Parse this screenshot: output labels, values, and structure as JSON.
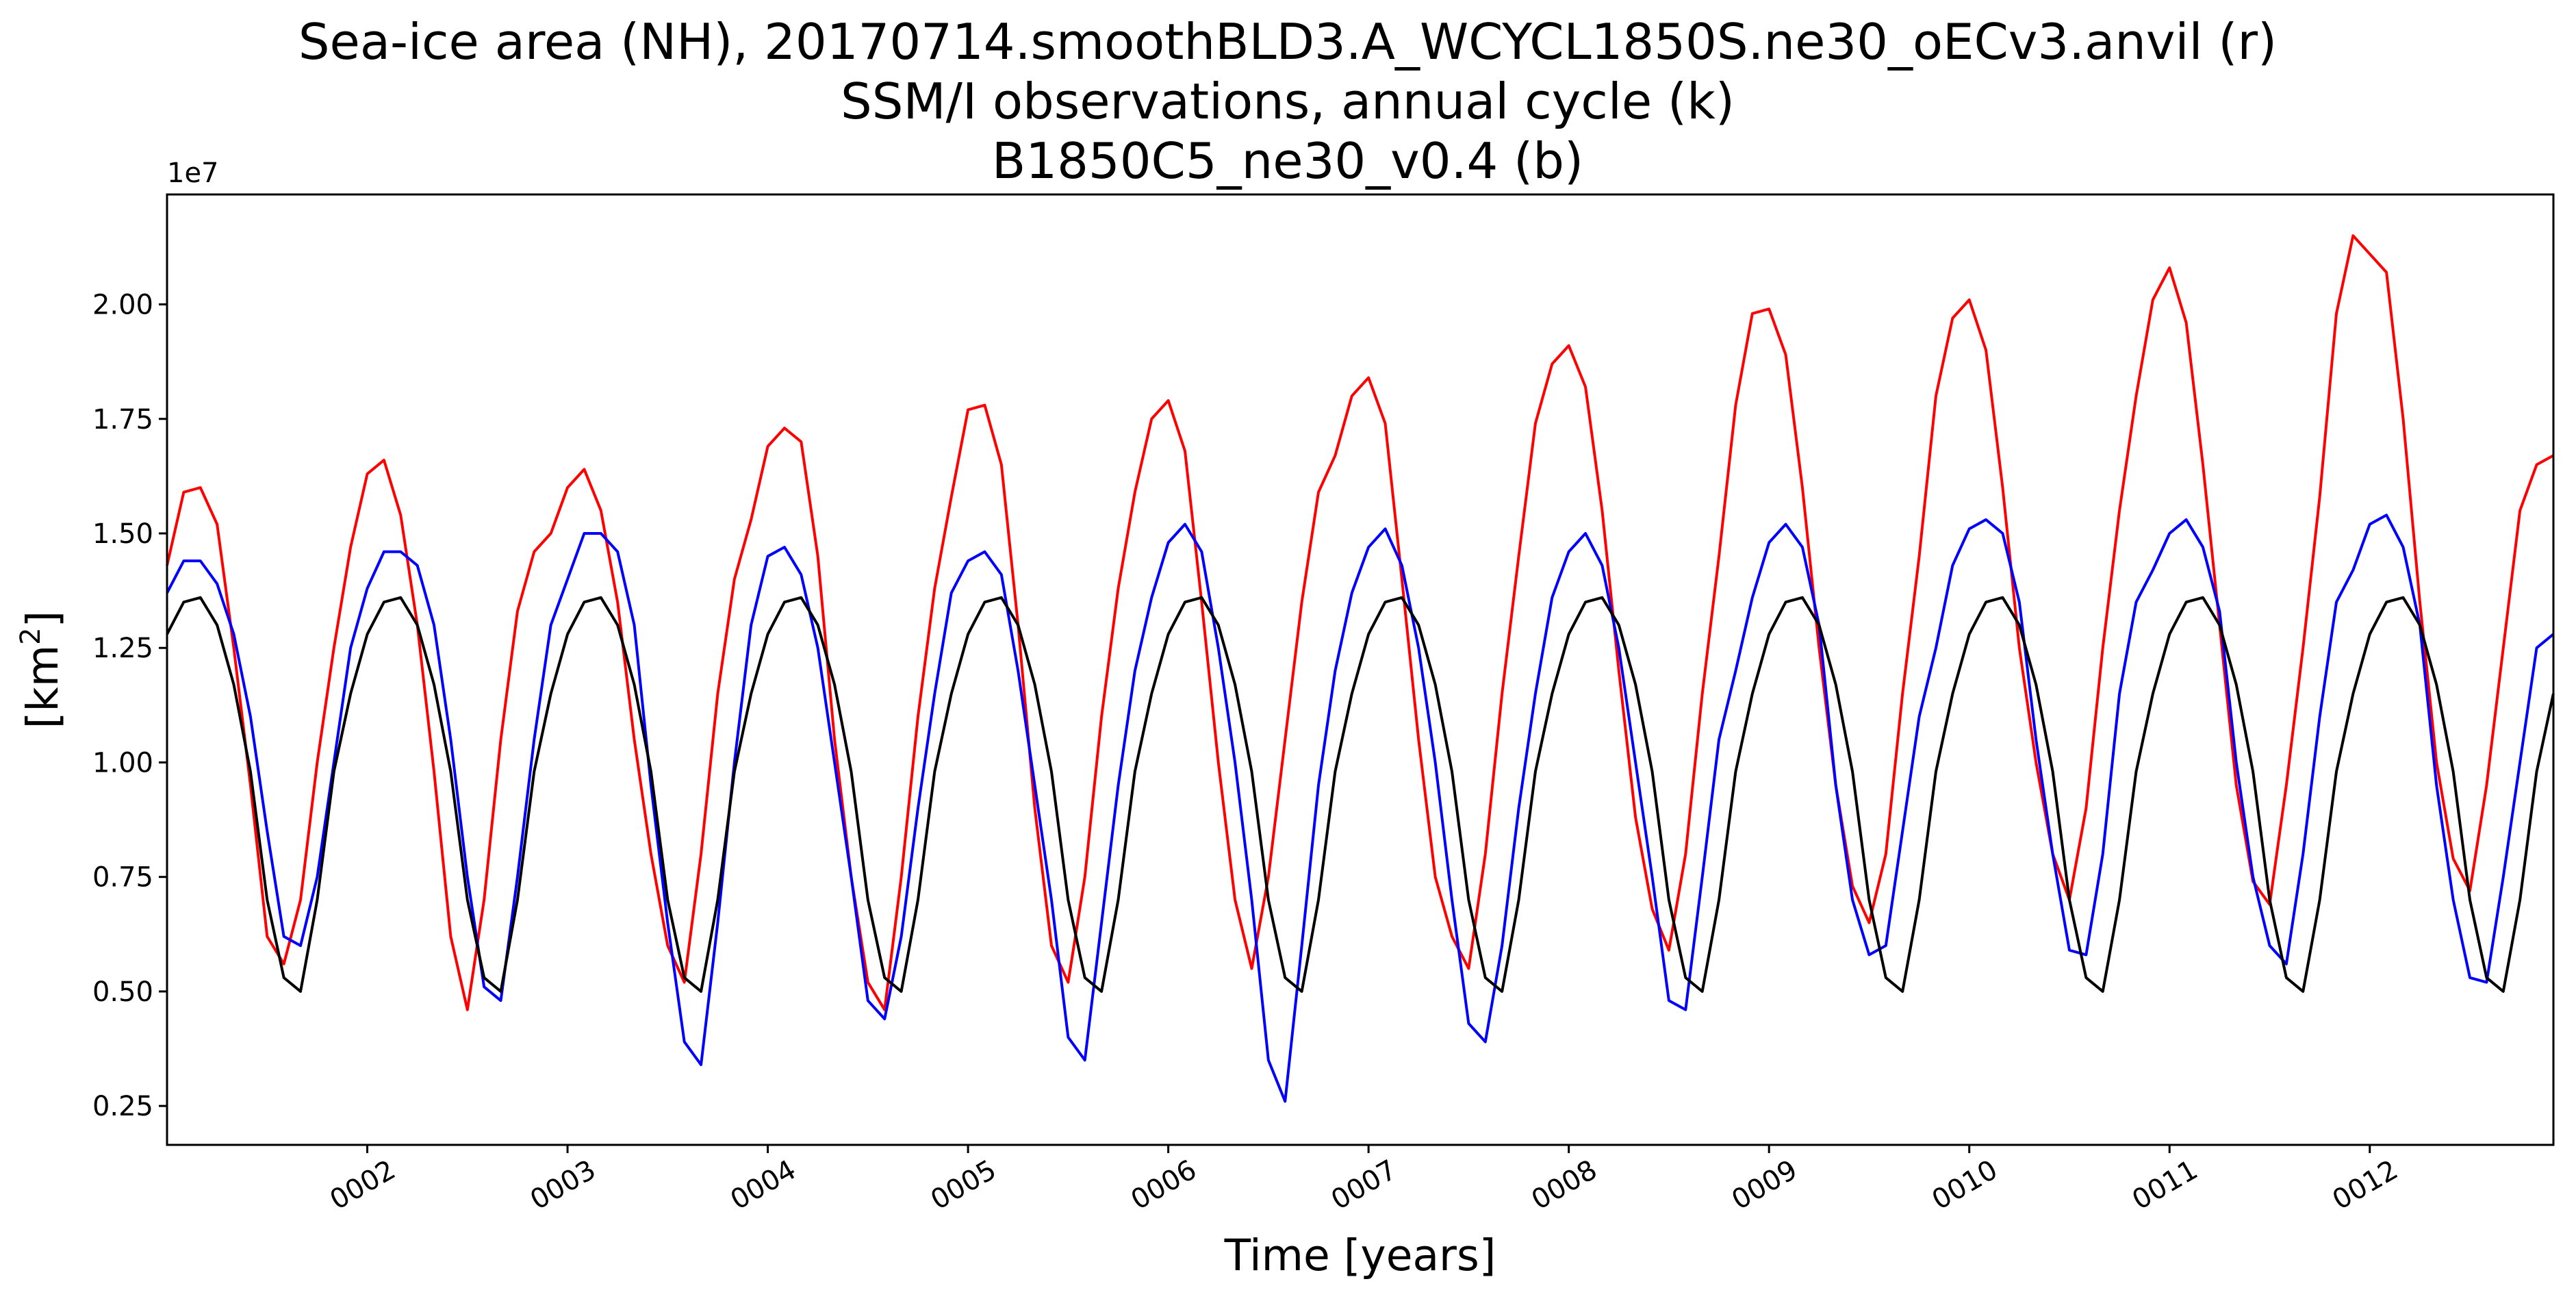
{
  "chart_data": {
    "type": "line",
    "title": [
      "Sea-ice area (NH), 20170714.smoothBLD3.A_WCYCL1850S.ne30_oECv3.anvil (r)",
      "SSM/I observations, annual cycle (k)",
      "B1850C5_ne30_v0.4 (b)"
    ],
    "xlabel": "Time [years]",
    "ylabel_base": "[km",
    "ylabel_sup": "2",
    "ylabel_close": "]",
    "y_offset_label": "1e7",
    "y_scale": 10000000,
    "xlim": [
      1.0,
      12.917
    ],
    "ylim": [
      1.65,
      22.4
    ],
    "x_ticks": [
      {
        "value": 2,
        "label": "0002"
      },
      {
        "value": 3,
        "label": "0003"
      },
      {
        "value": 4,
        "label": "0004"
      },
      {
        "value": 5,
        "label": "0005"
      },
      {
        "value": 6,
        "label": "0006"
      },
      {
        "value": 7,
        "label": "0007"
      },
      {
        "value": 8,
        "label": "0008"
      },
      {
        "value": 9,
        "label": "0009"
      },
      {
        "value": 10,
        "label": "0010"
      },
      {
        "value": 11,
        "label": "0011"
      },
      {
        "value": 12,
        "label": "0012"
      }
    ],
    "y_ticks": [
      {
        "value": 2.5,
        "label": "0.25"
      },
      {
        "value": 5.0,
        "label": "0.50"
      },
      {
        "value": 7.5,
        "label": "0.75"
      },
      {
        "value": 10.0,
        "label": "1.00"
      },
      {
        "value": 12.5,
        "label": "1.25"
      },
      {
        "value": 15.0,
        "label": "1.50"
      },
      {
        "value": 17.5,
        "label": "1.75"
      },
      {
        "value": 20.0,
        "label": "2.00"
      }
    ],
    "months": 144,
    "series": [
      {
        "name": "20170714.smoothBLD3.A_WCYCL1850S.ne30_oECv3.anvil (r)",
        "color": "#ff0000",
        "years": [
          [
            14.3,
            15.9,
            16.0,
            15.2,
            12.5,
            9.5,
            6.2,
            5.6,
            7.0,
            10.0,
            12.5,
            14.7
          ],
          [
            16.3,
            16.6,
            15.4,
            13.0,
            9.8,
            6.2,
            4.6,
            7.0,
            10.5,
            13.3,
            14.6,
            15.0
          ],
          [
            16.0,
            16.4,
            15.5,
            13.5,
            10.5,
            8.0,
            6.0,
            5.2,
            8.0,
            11.5,
            14.0,
            15.3
          ],
          [
            16.9,
            17.3,
            17.0,
            14.5,
            10.5,
            7.5,
            5.2,
            4.6,
            7.5,
            11.0,
            13.8,
            15.8
          ],
          [
            17.7,
            17.8,
            16.5,
            13.0,
            9.0,
            6.0,
            5.2,
            7.5,
            11.0,
            13.8,
            15.9,
            17.5
          ],
          [
            17.9,
            16.8,
            13.5,
            10.0,
            7.0,
            5.5,
            7.5,
            10.5,
            13.5,
            15.9,
            16.7,
            18.0
          ],
          [
            18.4,
            17.4,
            14.0,
            10.5,
            7.5,
            6.2,
            5.5,
            8.0,
            11.5,
            14.5,
            17.4,
            18.7
          ],
          [
            19.1,
            18.2,
            15.5,
            12.0,
            8.8,
            6.8,
            5.9,
            8.0,
            11.5,
            14.5,
            17.8,
            19.8
          ],
          [
            19.9,
            18.9,
            16.0,
            12.5,
            9.5,
            7.3,
            6.5,
            8.0,
            11.5,
            14.5,
            18.0,
            19.7
          ],
          [
            20.1,
            19.0,
            16.0,
            12.5,
            10.0,
            8.0,
            7.0,
            9.0,
            12.5,
            15.5,
            18.0,
            20.1
          ],
          [
            20.8,
            19.6,
            16.5,
            13.0,
            9.5,
            7.4,
            6.9,
            9.5,
            12.5,
            15.8,
            19.8,
            21.5
          ],
          [
            21.1,
            20.7,
            17.5,
            13.5,
            10.0,
            7.9,
            7.2,
            9.5,
            12.5,
            15.5,
            16.5,
            16.7
          ]
        ]
      },
      {
        "name": "B1850C5_ne30_v0.4 (b)",
        "color": "#0000ff",
        "years": [
          [
            13.7,
            14.4,
            14.4,
            13.9,
            12.8,
            11.0,
            8.5,
            6.2,
            6.0,
            7.5,
            10.0,
            12.5
          ],
          [
            13.8,
            14.6,
            14.6,
            14.3,
            13.0,
            10.5,
            7.5,
            5.1,
            4.8,
            7.5,
            10.5,
            13.0
          ],
          [
            14.0,
            15.0,
            15.0,
            14.6,
            13.0,
            9.5,
            6.5,
            3.9,
            3.4,
            6.5,
            10.0,
            13.0
          ],
          [
            14.5,
            14.7,
            14.1,
            12.5,
            10.0,
            7.5,
            4.8,
            4.4,
            6.2,
            9.0,
            11.5,
            13.7
          ],
          [
            14.4,
            14.6,
            14.1,
            12.0,
            9.5,
            7.0,
            4.0,
            3.5,
            6.5,
            9.5,
            12.0,
            13.6
          ],
          [
            14.8,
            15.2,
            14.6,
            12.5,
            10.0,
            7.0,
            3.5,
            2.6,
            6.0,
            9.5,
            12.0,
            13.7
          ],
          [
            14.7,
            15.1,
            14.3,
            12.5,
            10.0,
            7.0,
            4.3,
            3.9,
            6.0,
            9.0,
            11.5,
            13.6
          ],
          [
            14.6,
            15.0,
            14.3,
            12.5,
            10.0,
            7.5,
            4.8,
            4.6,
            7.5,
            10.5,
            12.0,
            13.6
          ],
          [
            14.8,
            15.2,
            14.7,
            13.0,
            9.5,
            7.0,
            5.8,
            6.0,
            8.5,
            11.0,
            12.5,
            14.3
          ],
          [
            15.1,
            15.3,
            15.0,
            13.5,
            10.5,
            8.0,
            5.9,
            5.8,
            8.0,
            11.5,
            13.5,
            14.2
          ],
          [
            15.0,
            15.3,
            14.7,
            13.3,
            10.0,
            7.5,
            6.0,
            5.6,
            8.0,
            11.0,
            13.5,
            14.2
          ],
          [
            15.2,
            15.4,
            14.7,
            13.0,
            9.5,
            7.0,
            5.3,
            5.2,
            7.5,
            10.0,
            12.5,
            12.8
          ]
        ]
      },
      {
        "name": "SSM/I observations, annual cycle (k)",
        "color": "#000000",
        "years": [
          [
            12.8,
            13.5,
            13.6,
            13.0,
            11.7,
            9.8,
            7.0,
            5.3,
            5.0,
            7.0,
            9.8,
            11.5
          ],
          [
            12.8,
            13.5,
            13.6,
            13.0,
            11.7,
            9.8,
            7.0,
            5.3,
            5.0,
            7.0,
            9.8,
            11.5
          ],
          [
            12.8,
            13.5,
            13.6,
            13.0,
            11.7,
            9.8,
            7.0,
            5.3,
            5.0,
            7.0,
            9.8,
            11.5
          ],
          [
            12.8,
            13.5,
            13.6,
            13.0,
            11.7,
            9.8,
            7.0,
            5.3,
            5.0,
            7.0,
            9.8,
            11.5
          ],
          [
            12.8,
            13.5,
            13.6,
            13.0,
            11.7,
            9.8,
            7.0,
            5.3,
            5.0,
            7.0,
            9.8,
            11.5
          ],
          [
            12.8,
            13.5,
            13.6,
            13.0,
            11.7,
            9.8,
            7.0,
            5.3,
            5.0,
            7.0,
            9.8,
            11.5
          ],
          [
            12.8,
            13.5,
            13.6,
            13.0,
            11.7,
            9.8,
            7.0,
            5.3,
            5.0,
            7.0,
            9.8,
            11.5
          ],
          [
            12.8,
            13.5,
            13.6,
            13.0,
            11.7,
            9.8,
            7.0,
            5.3,
            5.0,
            7.0,
            9.8,
            11.5
          ],
          [
            12.8,
            13.5,
            13.6,
            13.0,
            11.7,
            9.8,
            7.0,
            5.3,
            5.0,
            7.0,
            9.8,
            11.5
          ],
          [
            12.8,
            13.5,
            13.6,
            13.0,
            11.7,
            9.8,
            7.0,
            5.3,
            5.0,
            7.0,
            9.8,
            11.5
          ],
          [
            12.8,
            13.5,
            13.6,
            13.0,
            11.7,
            9.8,
            7.0,
            5.3,
            5.0,
            7.0,
            9.8,
            11.5
          ],
          [
            12.8,
            13.5,
            13.6,
            13.0,
            11.7,
            9.8,
            7.0,
            5.3,
            5.0,
            7.0,
            9.8,
            11.5
          ]
        ]
      }
    ]
  }
}
